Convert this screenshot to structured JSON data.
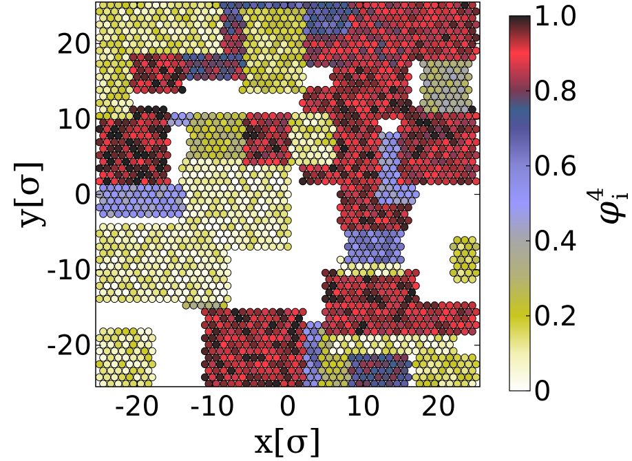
{
  "chart_data": {
    "type": "scatter",
    "xlabel": "x[σ]",
    "ylabel": "y[σ]",
    "xlim": [
      -25.5,
      25.5
    ],
    "ylim": [
      -25.5,
      25.5
    ],
    "xticks": [
      -20,
      -10,
      0,
      10,
      20
    ],
    "xtick_labels": [
      "-20",
      "-10",
      "0",
      "10",
      "20"
    ],
    "yticks": [
      -20,
      -10,
      0,
      10,
      20
    ],
    "ytick_labels": [
      "-20",
      "-10",
      "0",
      "10",
      "20"
    ],
    "grid": false,
    "colorbar": {
      "label": "φ_i^4",
      "label_base": "φ",
      "label_sub": "i",
      "label_sup": "4",
      "range": [
        0,
        1
      ],
      "ticks": [
        0,
        0.2,
        0.4,
        0.6,
        0.8,
        1.0
      ],
      "tick_labels": [
        "0",
        "0.2",
        "0.4",
        "0.6",
        "0.8",
        "1.0"
      ],
      "colormap_stops": [
        {
          "v": 0.0,
          "color": "#ffffff"
        },
        {
          "v": 0.1,
          "color": "#f1f0b2"
        },
        {
          "v": 0.2,
          "color": "#c9c61e"
        },
        {
          "v": 0.3,
          "color": "#b4b273"
        },
        {
          "v": 0.4,
          "color": "#a7a7a7"
        },
        {
          "v": 0.5,
          "color": "#9898ff"
        },
        {
          "v": 0.6,
          "color": "#8686d6"
        },
        {
          "v": 0.7,
          "color": "#54549a"
        },
        {
          "v": 0.75,
          "color": "#3e5f8e"
        },
        {
          "v": 0.8,
          "color": "#7a3a55"
        },
        {
          "v": 0.9,
          "color": "#ff3b46"
        },
        {
          "v": 1.0,
          "color": "#222222"
        }
      ]
    },
    "note_on_points": "Particles on a roughly triangular lattice (spacing ~1σ) colored by local order parameter φ_i^4 in [0,1]; data are listed as clusters with approximate value.",
    "clusters": [
      {
        "x": [
          -25,
          -9
        ],
        "y": [
          19,
          26
        ],
        "value": 0.12
      },
      {
        "x": [
          -25,
          -21
        ],
        "y": [
          10,
          19
        ],
        "value": 0.15
      },
      {
        "x": [
          -24,
          -14
        ],
        "y": [
          13,
          22
        ],
        "value": 0.93
      },
      {
        "x": [
          -18,
          -6
        ],
        "y": [
          15,
          24
        ],
        "value": 0.78
      },
      {
        "x": [
          -6,
          2
        ],
        "y": [
          13,
          25
        ],
        "value": 0.18
      },
      {
        "x": [
          -12,
          8
        ],
        "y": [
          21,
          26
        ],
        "value": 0.7
      },
      {
        "x": [
          0,
          16
        ],
        "y": [
          17,
          26
        ],
        "value": 0.85
      },
      {
        "x": [
          6,
          16
        ],
        "y": [
          10,
          22
        ],
        "value": 0.92
      },
      {
        "x": [
          14,
          25
        ],
        "y": [
          18,
          26
        ],
        "value": 0.9
      },
      {
        "x": [
          18,
          24
        ],
        "y": [
          11,
          22
        ],
        "value": 0.35
      },
      {
        "x": [
          15,
          25
        ],
        "y": [
          1,
          12
        ],
        "value": 0.88
      },
      {
        "x": [
          -25,
          -16
        ],
        "y": [
          1,
          12
        ],
        "value": 0.95
      },
      {
        "x": [
          -20,
          -13
        ],
        "y": [
          9,
          11
        ],
        "value": 0.5
      },
      {
        "x": [
          -13,
          -6
        ],
        "y": [
          5,
          11
        ],
        "value": 0.25
      },
      {
        "x": [
          -6,
          0
        ],
        "y": [
          4,
          11
        ],
        "value": 0.88
      },
      {
        "x": [
          -1,
          6
        ],
        "y": [
          4,
          11
        ],
        "value": 0.12
      },
      {
        "x": [
          2,
          12
        ],
        "y": [
          1,
          14
        ],
        "value": 0.92
      },
      {
        "x": [
          12,
          17
        ],
        "y": [
          -1,
          8
        ],
        "value": 0.5
      },
      {
        "x": [
          -25,
          -14
        ],
        "y": [
          -3,
          1
        ],
        "value": 0.5
      },
      {
        "x": [
          -14,
          0
        ],
        "y": [
          -7,
          5
        ],
        "value": 0.08
      },
      {
        "x": [
          -25,
          -8
        ],
        "y": [
          -14,
          -4
        ],
        "value": 0.08
      },
      {
        "x": [
          -14,
          -8
        ],
        "y": [
          -15,
          -10
        ],
        "value": 0.3
      },
      {
        "x": [
          7,
          16
        ],
        "y": [
          -5,
          1
        ],
        "value": 0.9
      },
      {
        "x": [
          8,
          15
        ],
        "y": [
          -9,
          -5
        ],
        "value": 0.6
      },
      {
        "x": [
          7,
          15
        ],
        "y": [
          -11,
          -8
        ],
        "value": 0.1
      },
      {
        "x": [
          5,
          17
        ],
        "y": [
          -15,
          -10
        ],
        "value": 0.92
      },
      {
        "x": [
          5,
          25
        ],
        "y": [
          -19,
          -14
        ],
        "value": 0.9
      },
      {
        "x": [
          6,
          22
        ],
        "y": [
          -21,
          -18
        ],
        "value": 0.1
      },
      {
        "x": [
          -11,
          2
        ],
        "y": [
          -26,
          -15
        ],
        "value": 0.92
      },
      {
        "x": [
          -3,
          4
        ],
        "y": [
          -26,
          -17
        ],
        "value": 0.6
      },
      {
        "x": [
          2,
          8
        ],
        "y": [
          -26,
          -18
        ],
        "value": 0.25
      },
      {
        "x": [
          6,
          16
        ],
        "y": [
          -26,
          -20
        ],
        "value": 0.75
      },
      {
        "x": [
          17,
          25
        ],
        "y": [
          -26,
          -21
        ],
        "value": 0.15
      },
      {
        "x": [
          22,
          25
        ],
        "y": [
          -12,
          -6
        ],
        "value": 0.2
      },
      {
        "x": [
          -25,
          -18
        ],
        "y": [
          -26,
          -18
        ],
        "value": 0.12
      }
    ]
  }
}
